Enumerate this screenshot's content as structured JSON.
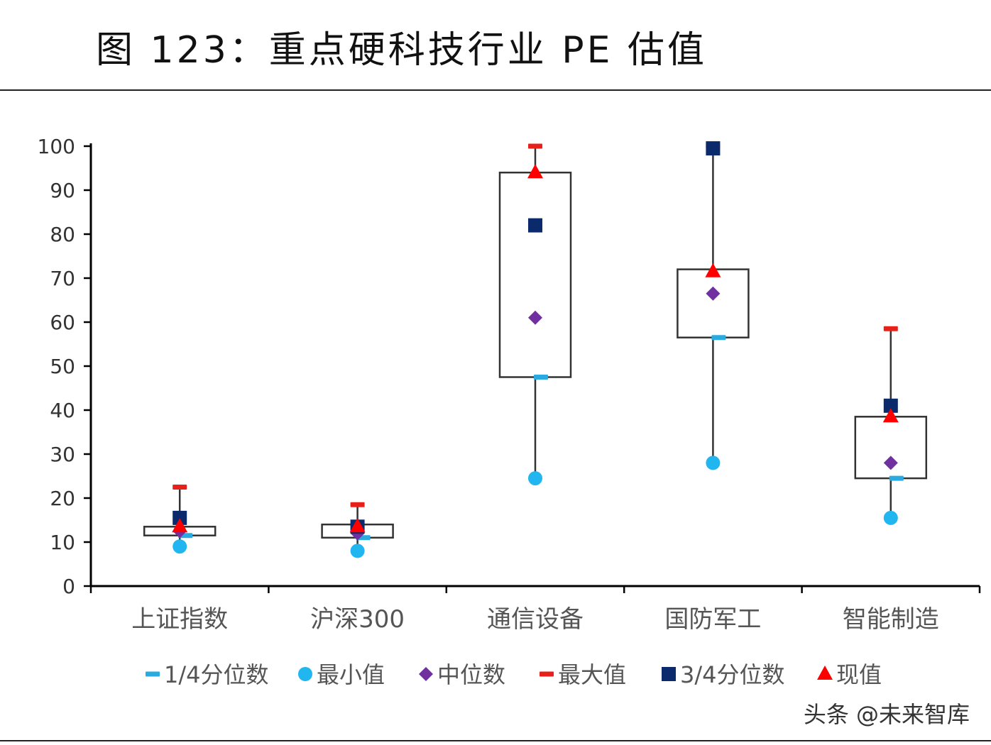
{
  "title": "图 123：重点硬科技行业 PE 估值",
  "watermark": "头条 @未来智库",
  "colors": {
    "q1": "#29abe2",
    "min": "#21b6f0",
    "median": "#7030a0",
    "max": "#e8201a",
    "q3": "#0a2a6b",
    "current": "#ff0000",
    "box": "#333333",
    "axis": "#000000"
  },
  "chart_data": {
    "type": "box",
    "categories": [
      "上证指数",
      "沪深300",
      "通信设备",
      "国防军工",
      "智能制造"
    ],
    "ylim": [
      0,
      100
    ],
    "yticks": [
      "0",
      "10",
      "20",
      "30",
      "40",
      "50",
      "60",
      "70",
      "80",
      "90",
      "100"
    ],
    "grid": false,
    "legend_placement": "bottom",
    "series": [
      {
        "name": "1/4分位数",
        "marker": "dash",
        "values": [
          11.5,
          11,
          47.5,
          56.5,
          24.5
        ]
      },
      {
        "name": "最小值",
        "marker": "circle",
        "values": [
          9,
          8,
          24.5,
          28,
          15.5
        ]
      },
      {
        "name": "中位数",
        "marker": "diamond",
        "values": [
          12.5,
          12,
          61,
          66.5,
          28
        ]
      },
      {
        "name": "最大值",
        "marker": "dash",
        "values": [
          22.5,
          18.5,
          100,
          100,
          58.5
        ]
      },
      {
        "name": "3/4分位数",
        "marker": "square",
        "values": [
          15.5,
          13.5,
          82,
          99.5,
          41
        ]
      },
      {
        "name": "现值",
        "marker": "triangle",
        "values": [
          13.5,
          13.5,
          94,
          71.5,
          38.5
        ]
      }
    ],
    "boxes": [
      {
        "low": 11.5,
        "high": 13.5
      },
      {
        "low": 11,
        "high": 14
      },
      {
        "low": 47.5,
        "high": 94
      },
      {
        "low": 56.5,
        "high": 72
      },
      {
        "low": 24.5,
        "high": 38.5
      }
    ]
  }
}
